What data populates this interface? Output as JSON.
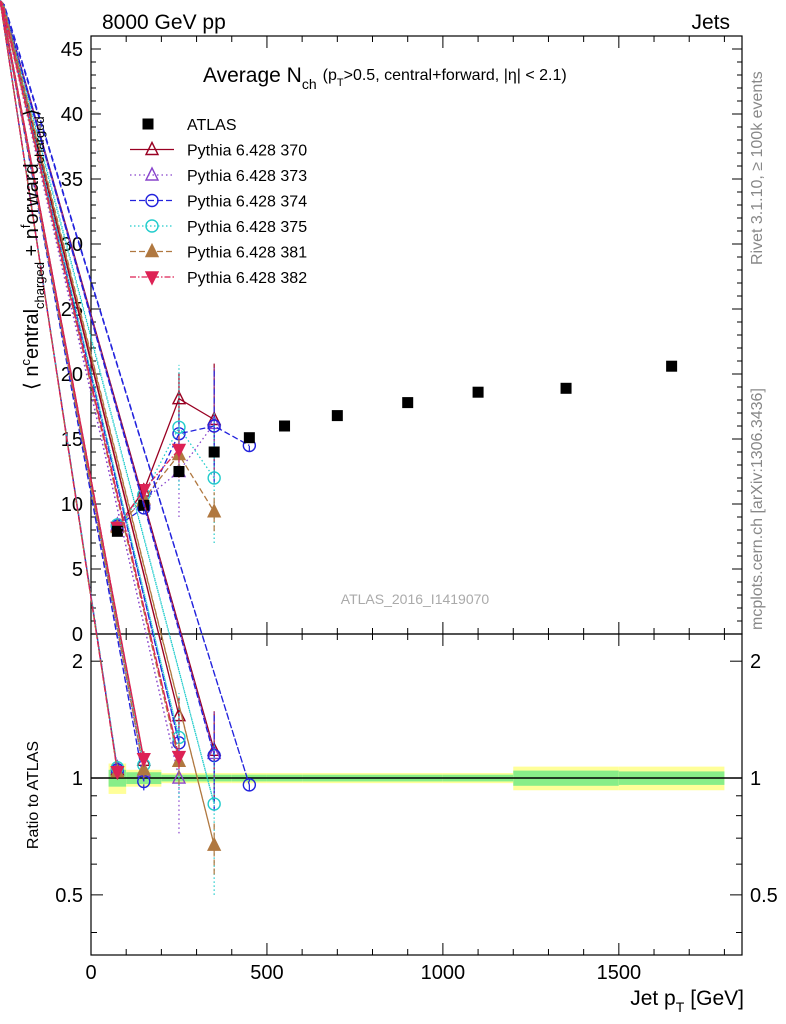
{
  "header": {
    "left": "8000 GeV pp",
    "right": "Jets"
  },
  "side_labels": {
    "rivet": "Rivet 3.1.10, ≥ 100k events",
    "mcplots": "mcplots.cern.ch [arXiv:1306.3436]"
  },
  "watermark": "ATLAS_2016_I1419070",
  "chart_data": {
    "type": "scatter",
    "title": {
      "main": "Average N",
      "main_sub": "ch",
      "cut_1": "(p",
      "cut_1_sub": "T",
      "cut_2": ">0.5, central+forward, |η| < 2.1)"
    },
    "xlabel": "Jet p",
    "xlabel_sub": "T",
    "xlabel_unit": "[GeV]",
    "ylabel": {
      "open": "⟨ n",
      "central_sup": "c",
      "central": "entral",
      "central_sub": "charged",
      "plus": " + n",
      "forward_sup": "f",
      "forward": "orward",
      "forward_sub": "charged",
      "close": "⟩"
    },
    "ratio_ylabel": "Ratio to ATLAS",
    "xlim": [
      0,
      1850
    ],
    "ylim": [
      0,
      46
    ],
    "ratio_ylim": [
      0.35,
      2.35
    ],
    "x_ticks": [
      0,
      500,
      1000,
      1500
    ],
    "x_tick_labels": [
      "0",
      "500",
      "1000",
      "1500"
    ],
    "y_ticks": [
      0,
      5,
      10,
      15,
      20,
      25,
      30,
      35,
      40,
      45
    ],
    "y_tick_labels": [
      "0",
      "5",
      "10",
      "15",
      "20",
      "25",
      "30",
      "35",
      "40",
      "45"
    ],
    "ratio_y_ticks": [
      0.5,
      1,
      2
    ],
    "ratio_y_tick_labels": [
      "0.5",
      "1",
      "2"
    ],
    "legend_position": "top-left",
    "data": {
      "name": "ATLAS",
      "color": "#000000",
      "x": [
        75,
        150,
        250,
        350,
        450,
        550,
        700,
        900,
        1100,
        1350,
        1650
      ],
      "y": [
        7.9,
        9.9,
        12.5,
        14.0,
        15.1,
        16.0,
        16.8,
        17.8,
        18.6,
        18.9,
        20.6
      ],
      "bins": [
        [
          50,
          100
        ],
        [
          100,
          200
        ],
        [
          200,
          300
        ],
        [
          300,
          400
        ],
        [
          400,
          500
        ],
        [
          500,
          600
        ],
        [
          600,
          800
        ],
        [
          800,
          1000
        ],
        [
          1000,
          1200
        ],
        [
          1200,
          1500
        ],
        [
          1500,
          1800
        ]
      ],
      "band_inner": [
        0.05,
        0.035,
        0.02,
        0.02,
        0.02,
        0.02,
        0.02,
        0.02,
        0.02,
        0.045,
        0.04
      ],
      "band_outer": [
        0.09,
        0.05,
        0.03,
        0.03,
        0.03,
        0.03,
        0.03,
        0.03,
        0.03,
        0.07,
        0.07
      ]
    },
    "series": [
      {
        "name": "Pythia 6.428 370",
        "color": "#990022",
        "marker": "triangle-open",
        "dash": "",
        "x": [
          75,
          150,
          250,
          350
        ],
        "y": [
          8.3,
          11.0,
          18.1,
          16.5
        ],
        "yerr": [
          0.3,
          0.6,
          2.0,
          4.3
        ]
      },
      {
        "name": "Pythia 6.428 373",
        "color": "#8844cc",
        "marker": "triangle-open",
        "dash": "1.5,3",
        "x": [
          75,
          150,
          250,
          350
        ],
        "y": [
          8.4,
          10.3,
          12.5,
          16.2
        ],
        "yerr": [
          0.3,
          0.6,
          3.5,
          4.5
        ]
      },
      {
        "name": "Pythia 6.428 374",
        "color": "#2222dd",
        "marker": "circle-open",
        "dash": "6,3",
        "x": [
          75,
          150,
          250,
          350,
          450
        ],
        "y": [
          8.3,
          9.7,
          15.4,
          16.0,
          14.5
        ],
        "yerr": [
          0.3,
          0.5,
          1.5,
          4.5,
          0.5
        ]
      },
      {
        "name": "Pythia 6.428 375",
        "color": "#22cccc",
        "marker": "circle-open",
        "dash": "1.5,2.5",
        "x": [
          75,
          150,
          250,
          350
        ],
        "y": [
          8.4,
          10.7,
          15.9,
          12.0
        ],
        "yerr": [
          0.3,
          0.6,
          4.8,
          5.0
        ]
      },
      {
        "name": "Pythia 6.428 381",
        "color": "#b07840",
        "marker": "triangle-filled",
        "dash": "6,3",
        "x": [
          75,
          150,
          250,
          350
        ],
        "y": [
          8.2,
          10.4,
          13.8,
          9.4
        ],
        "yerr": [
          0.3,
          0.5,
          1.8,
          1.5
        ]
      },
      {
        "name": "Pythia 6.428 382",
        "color": "#dd2255",
        "marker": "triangle-down-filled",
        "dash": "6,2,1.5,2",
        "x": [
          75,
          150,
          250,
          350
        ],
        "y": [
          8.2,
          11.1,
          14.2,
          null
        ],
        "yerr": [
          0.3,
          0.5,
          1.0,
          null
        ]
      }
    ]
  }
}
